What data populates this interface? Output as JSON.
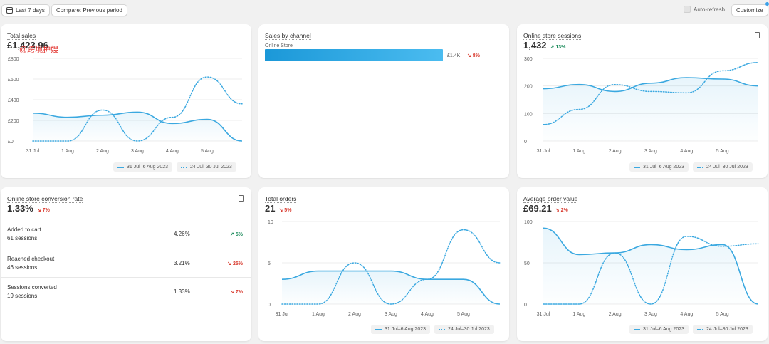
{
  "toolbar": {
    "date_range_label": "Last 7 days",
    "compare_label": "Compare: Previous period",
    "auto_refresh_label": "Auto-refresh",
    "customize_label": "Customize"
  },
  "watermark": "@跨境护嫂",
  "legend": {
    "current": "31 Jul–6 Aug 2023",
    "previous": "24 Jul–30 Jul 2023"
  },
  "total_sales": {
    "title": "Total sales",
    "value": "£1,423.96",
    "chart_data": {
      "type": "line",
      "categories": [
        "31 Jul",
        "1 Aug",
        "2 Aug",
        "3 Aug",
        "4 Aug",
        "5 Aug",
        "6 Aug"
      ],
      "x_tick_labels": [
        "31 Jul",
        "1 Aug",
        "2 Aug",
        "3 Aug",
        "4 Aug",
        "5 Aug"
      ],
      "y_tick_labels": [
        "£0",
        "£200",
        "£400",
        "£600",
        "£800"
      ],
      "ylim": [
        0,
        800
      ],
      "series": [
        {
          "name": "31 Jul–6 Aug 2023",
          "style": "solid",
          "values": [
            270,
            230,
            250,
            280,
            170,
            210,
            0
          ]
        },
        {
          "name": "24 Jul–30 Jul 2023",
          "style": "dotted",
          "values": [
            0,
            0,
            300,
            0,
            230,
            620,
            360
          ]
        }
      ],
      "color": "#3aa8e0"
    }
  },
  "sales_by_channel": {
    "title": "Sales by channel",
    "chart_data": {
      "type": "bar",
      "categories": [
        "Online Store"
      ],
      "values": [
        1400
      ],
      "value_labels": [
        "£1.4K"
      ],
      "deltas": [
        "8%"
      ],
      "delta_direction": [
        "down"
      ],
      "color": "#2aa8e6"
    }
  },
  "sessions": {
    "title": "Online store sessions",
    "value": "1,432",
    "delta": "13%",
    "delta_direction": "up",
    "chart_data": {
      "type": "line",
      "categories": [
        "31 Jul",
        "1 Aug",
        "2 Aug",
        "3 Aug",
        "4 Aug",
        "5 Aug",
        "6 Aug"
      ],
      "x_tick_labels": [
        "31 Jul",
        "1 Aug",
        "2 Aug",
        "3 Aug",
        "4 Aug",
        "5 Aug"
      ],
      "y_tick_labels": [
        "0",
        "100",
        "200",
        "300"
      ],
      "ylim": [
        0,
        300
      ],
      "series": [
        {
          "name": "31 Jul–6 Aug 2023",
          "style": "solid",
          "values": [
            190,
            205,
            180,
            210,
            230,
            225,
            200
          ]
        },
        {
          "name": "24 Jul–30 Jul 2023",
          "style": "dotted",
          "values": [
            60,
            115,
            205,
            180,
            175,
            255,
            285
          ]
        }
      ],
      "color": "#3aa8e0"
    }
  },
  "conversion": {
    "title": "Online store conversion rate",
    "value": "1.33%",
    "delta": "7%",
    "delta_direction": "down",
    "rows": [
      {
        "label": "Added to cart",
        "sessions": "61 sessions",
        "value": "4.26%",
        "delta": "5%",
        "direction": "up"
      },
      {
        "label": "Reached checkout",
        "sessions": "46 sessions",
        "value": "3.21%",
        "delta": "25%",
        "direction": "down"
      },
      {
        "label": "Sessions converted",
        "sessions": "19 sessions",
        "value": "1.33%",
        "delta": "7%",
        "direction": "down"
      }
    ]
  },
  "total_orders": {
    "title": "Total orders",
    "value": "21",
    "delta": "5%",
    "delta_direction": "down",
    "chart_data": {
      "type": "line",
      "categories": [
        "31 Jul",
        "1 Aug",
        "2 Aug",
        "3 Aug",
        "4 Aug",
        "5 Aug",
        "6 Aug"
      ],
      "x_tick_labels": [
        "31 Jul",
        "1 Aug",
        "2 Aug",
        "3 Aug",
        "4 Aug",
        "5 Aug"
      ],
      "y_tick_labels": [
        "0",
        "5",
        "10"
      ],
      "ylim": [
        0,
        10
      ],
      "series": [
        {
          "name": "31 Jul–6 Aug 2023",
          "style": "solid",
          "values": [
            3,
            4,
            4,
            4,
            3,
            3,
            0
          ]
        },
        {
          "name": "24 Jul–30 Jul 2023",
          "style": "dotted",
          "values": [
            0,
            0,
            5,
            0,
            3,
            9,
            5
          ]
        }
      ],
      "color": "#3aa8e0"
    }
  },
  "aov": {
    "title": "Average order value",
    "value": "£69.21",
    "delta": "2%",
    "delta_direction": "down",
    "chart_data": {
      "type": "line",
      "categories": [
        "31 Jul",
        "1 Aug",
        "2 Aug",
        "3 Aug",
        "4 Aug",
        "5 Aug",
        "6 Aug"
      ],
      "x_tick_labels": [
        "31 Jul",
        "1 Aug",
        "2 Aug",
        "3 Aug",
        "4 Aug",
        "5 Aug"
      ],
      "y_tick_labels": [
        "0",
        "50",
        "100"
      ],
      "ylim": [
        0,
        100
      ],
      "series": [
        {
          "name": "31 Jul–6 Aug 2023",
          "style": "solid",
          "values": [
            92,
            60,
            62,
            72,
            66,
            72,
            0
          ]
        },
        {
          "name": "24 Jul–30 Jul 2023",
          "style": "dotted",
          "values": [
            0,
            0,
            62,
            0,
            82,
            70,
            73
          ]
        }
      ],
      "color": "#3aa8e0"
    }
  }
}
